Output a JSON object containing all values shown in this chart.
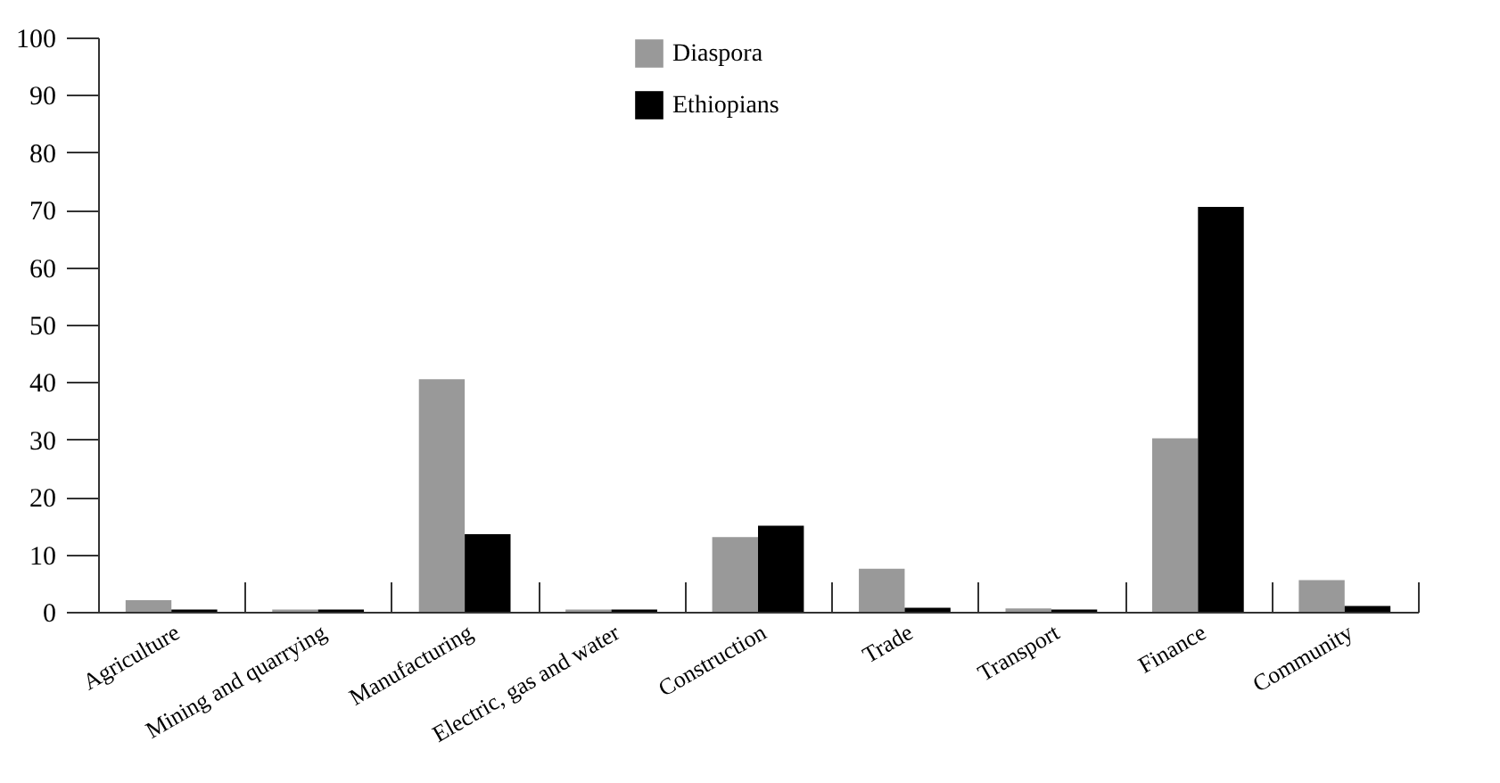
{
  "chart_data": {
    "type": "bar",
    "categories": [
      "Agriculture",
      "Mining and quarrying",
      "Manufacturing",
      "Electric, gas and water",
      "Construction",
      "Trade",
      "Transport",
      "Finance",
      "Community"
    ],
    "series": [
      {
        "name": "Diaspora",
        "color": "#999999",
        "values": [
          2,
          0.4,
          40.5,
          0.4,
          13,
          7.5,
          0.6,
          30.2,
          5.5
        ]
      },
      {
        "name": "Ethiopians",
        "color": "#000000",
        "values": [
          0.4,
          0.4,
          13.5,
          0.4,
          15,
          0.7,
          0.4,
          70.5,
          1
        ]
      }
    ],
    "ylim": [
      0,
      100
    ],
    "yticks": [
      0,
      10,
      20,
      30,
      40,
      50,
      60,
      70,
      80,
      90,
      100
    ],
    "grid": false,
    "legend": "top"
  }
}
